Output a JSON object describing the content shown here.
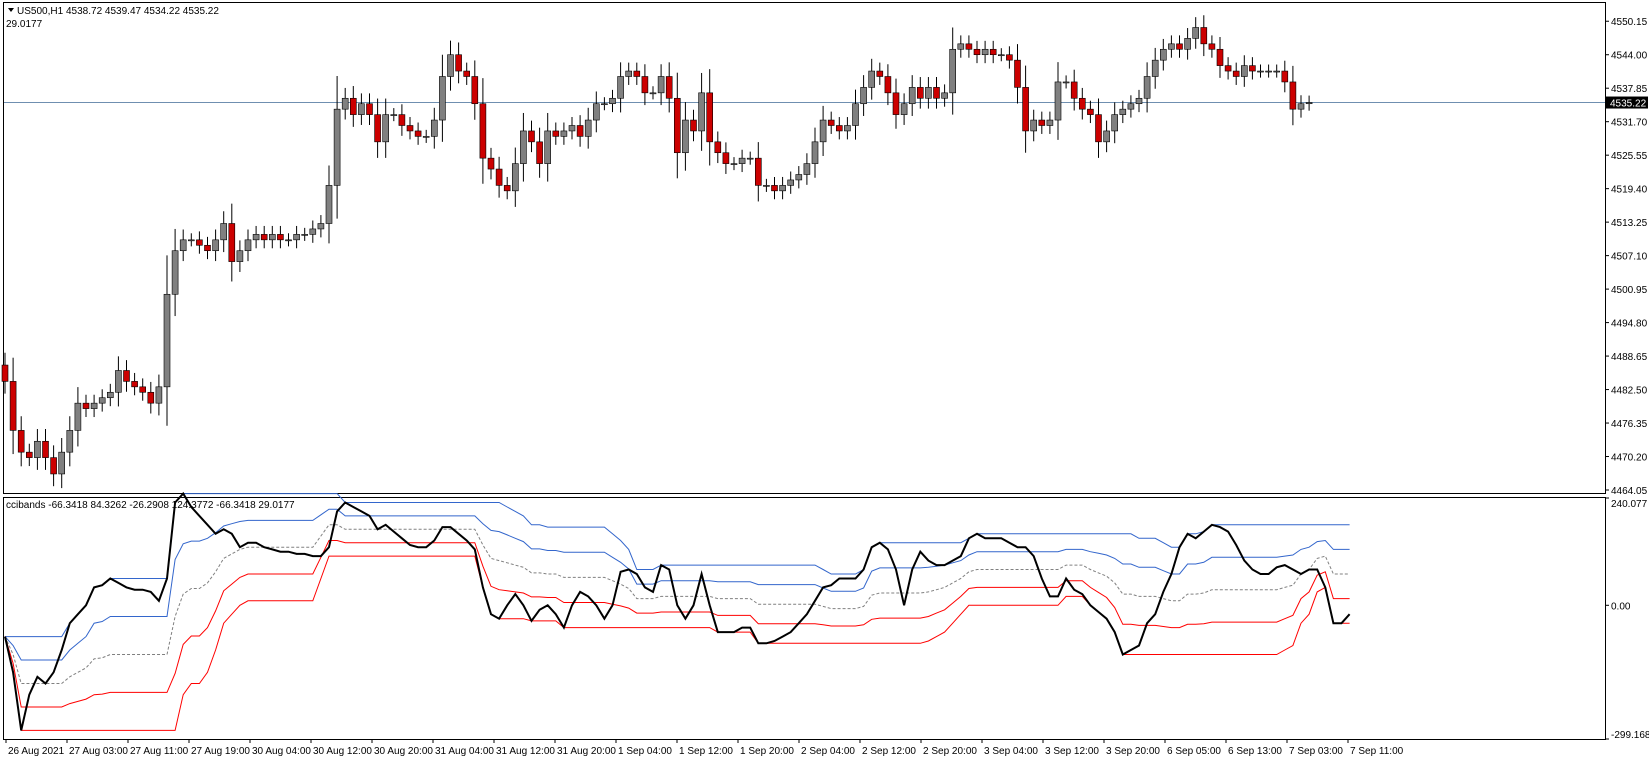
{
  "header": {
    "symbol": "US500,H1",
    "ohlc": "4538.72 4539.47 4534.22 4535.22",
    "sub_value": "29.0177"
  },
  "indicator": {
    "label": "ccibands -66.3418 84.3262 -26.2908 124.3772 -66.3418 29.0177"
  },
  "colors": {
    "bull_body": "#808080",
    "bear_body": "#cc0000",
    "wick": "#000000",
    "upper_band": "#3366cc",
    "lower_band": "#ff0000",
    "mid_band": "#808080",
    "cci_line": "#000000",
    "price_line": "#6f8fb0",
    "price_tag_bg": "#000000",
    "price_tag_fg": "#ffffff"
  },
  "chart_data": [
    {
      "type": "candlestick",
      "symbol": "US500",
      "timeframe": "H1",
      "yticks": [
        "4550.15",
        "4544.00",
        "4537.85",
        "4531.70",
        "4525.55",
        "4519.40",
        "4513.25",
        "4507.10",
        "4500.95",
        "4494.80",
        "4488.65",
        "4482.50",
        "4476.35",
        "4470.20",
        "4464.05"
      ],
      "ylim": [
        4463.5,
        4553.5
      ],
      "xticks": [
        "26 Aug 2021",
        "27 Aug 03:00",
        "27 Aug 11:00",
        "27 Aug 19:00",
        "30 Aug 04:00",
        "30 Aug 12:00",
        "30 Aug 20:00",
        "31 Aug 04:00",
        "31 Aug 12:00",
        "31 Aug 20:00",
        "1 Sep 04:00",
        "1 Sep 12:00",
        "1 Sep 20:00",
        "2 Sep 04:00",
        "2 Sep 12:00",
        "2 Sep 20:00",
        "3 Sep 04:00",
        "3 Sep 12:00",
        "3 Sep 20:00",
        "6 Sep 05:00",
        "6 Sep 13:00",
        "7 Sep 03:00",
        "7 Sep 11:00"
      ],
      "current_price": "4535.22",
      "close": [
        4484,
        4475,
        4471,
        4470,
        4473,
        4470,
        4467,
        4471,
        4475,
        4480,
        4479,
        4480,
        4481,
        4482,
        4486,
        4484,
        4483,
        4482,
        4480,
        4483,
        4500,
        4508,
        4510,
        4510,
        4509,
        4508,
        4510,
        4513,
        4506,
        4508,
        4510,
        4511,
        4510,
        4511,
        4510,
        4510,
        4511,
        4511,
        4512,
        4513,
        4520,
        4534,
        4536,
        4533,
        4535,
        4533,
        4528,
        4533,
        4533,
        4531,
        4530,
        4529,
        4529,
        4532,
        4540,
        4544,
        4541,
        4540,
        4535,
        4525,
        4523,
        4520,
        4519,
        4524,
        4530,
        4528,
        4524,
        4530,
        4529,
        4530,
        4531,
        4529,
        4532,
        4535,
        4535,
        4536,
        4540,
        4541,
        4540,
        4537,
        4537,
        4540,
        4536,
        4526,
        4532,
        4530,
        4537,
        4528,
        4526,
        4524,
        4524,
        4525,
        4525,
        4520,
        4520,
        4519,
        4520,
        4521,
        4522,
        4524,
        4528,
        4532,
        4531,
        4530,
        4531,
        4535,
        4538,
        4541,
        4540,
        4537,
        4533,
        4535,
        4538,
        4536,
        4538,
        4536,
        4537,
        4545,
        4546,
        4545,
        4544,
        4545,
        4544,
        4544,
        4543,
        4538,
        4530,
        4532,
        4531,
        4532,
        4539,
        4539,
        4536,
        4534,
        4533,
        4528,
        4530,
        4533,
        4534,
        4535,
        4536,
        4540,
        4543,
        4545,
        4546,
        4545,
        4547,
        4549,
        4546,
        4545,
        4542,
        4541,
        4540,
        4542,
        4541,
        4541,
        4541,
        4541,
        4539,
        4534,
        4535,
        4535.22
      ]
    },
    {
      "type": "line",
      "indicator": "ccibands",
      "yticks": [
        "240.077",
        "0.00",
        "-299.1688"
      ],
      "ylim": [
        -299.1688,
        240.077
      ],
      "values": {
        "cci": -66.3418,
        "upper_outer": 84.3262,
        "mid": -26.2908,
        "upper": 124.3772,
        "lower": -66.3418,
        "current": 29.0177
      },
      "series": [
        {
          "name": "cci",
          "values": [
            -70,
            -150,
            -280,
            -200,
            -160,
            -175,
            -150,
            -100,
            -40,
            -20,
            0,
            40,
            45,
            60,
            50,
            40,
            35,
            35,
            30,
            10,
            60,
            230,
            250,
            220,
            200,
            180,
            160,
            170,
            160,
            130,
            140,
            140,
            130,
            125,
            120,
            120,
            115,
            115,
            110,
            110,
            130,
            210,
            230,
            220,
            210,
            200,
            170,
            180,
            165,
            150,
            135,
            130,
            130,
            145,
            175,
            175,
            160,
            145,
            125,
            40,
            -20,
            -30,
            0,
            25,
            0,
            -35,
            -10,
            0,
            -20,
            -50,
            0,
            30,
            20,
            0,
            -30,
            0,
            75,
            80,
            70,
            40,
            30,
            90,
            80,
            0,
            -30,
            0,
            70,
            0,
            -60,
            -60,
            -60,
            -50,
            -50,
            -85,
            -85,
            -80,
            -70,
            -60,
            -40,
            -20,
            10,
            40,
            45,
            60,
            60,
            60,
            80,
            130,
            140,
            125,
            80,
            0,
            80,
            120,
            100,
            90,
            90,
            100,
            110,
            150,
            160,
            150,
            150,
            150,
            140,
            130,
            130,
            110,
            60,
            20,
            20,
            60,
            35,
            25,
            0,
            -15,
            -30,
            -60,
            -110,
            -100,
            -90,
            -40,
            -20,
            30,
            70,
            130,
            160,
            150,
            165,
            180,
            175,
            165,
            135,
            100,
            80,
            70,
            70,
            85,
            90,
            80,
            70,
            80,
            80,
            40,
            -40,
            -40,
            -20
          ]
        }
      ]
    }
  ]
}
